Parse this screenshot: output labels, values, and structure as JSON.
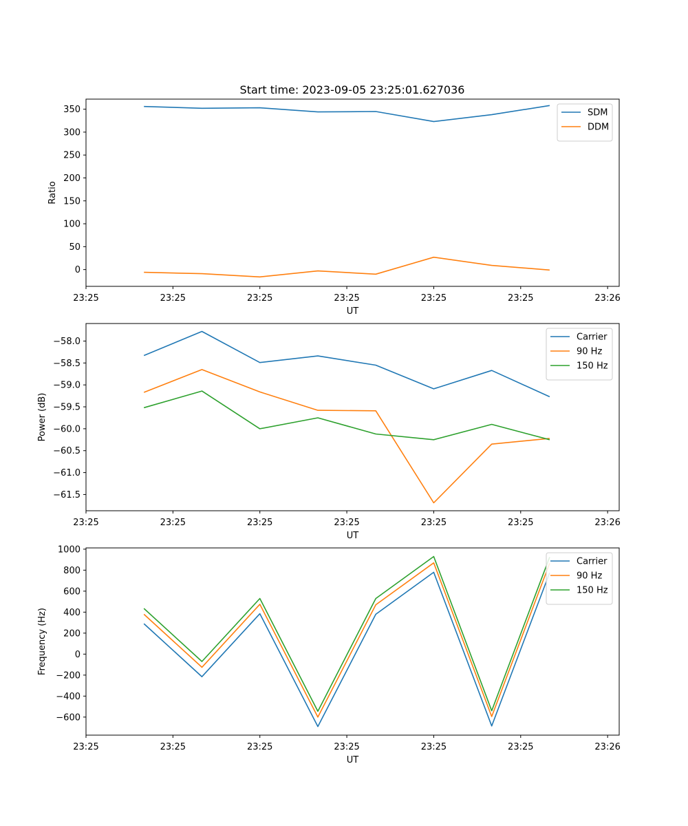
{
  "chart_data": [
    {
      "type": "line",
      "title": "Start time: 2023-09-05 23:25:01.627036",
      "xlabel": "UT",
      "ylabel": "Ratio",
      "x": [
        1,
        2,
        3,
        4,
        5,
        6,
        7,
        8
      ],
      "xlim": [
        0,
        9.2
      ],
      "x_ticks": [
        {
          "x": 0,
          "label": "23:25"
        },
        {
          "x": 1.5,
          "label": "23:25"
        },
        {
          "x": 3,
          "label": "23:25"
        },
        {
          "x": 4.5,
          "label": "23:25"
        },
        {
          "x": 6,
          "label": "23:25"
        },
        {
          "x": 7.5,
          "label": "23:25"
        },
        {
          "x": 9,
          "label": "23:26"
        }
      ],
      "ylim": [
        -36.6,
        372
      ],
      "y_ticks": [
        0,
        50,
        100,
        150,
        200,
        250,
        300,
        350
      ],
      "y_tick_labels": [
        "0",
        "50",
        "100",
        "150",
        "200",
        "250",
        "300",
        "350"
      ],
      "legend_position": "top-right",
      "series": [
        {
          "name": "SDM",
          "color": "#1f77b4",
          "values": [
            356,
            352,
            353,
            344,
            345,
            323,
            338,
            358
          ]
        },
        {
          "name": "DDM",
          "color": "#ff7f0e",
          "values": [
            -6,
            -9,
            -16,
            -3,
            -10,
            27,
            9,
            -1
          ]
        }
      ]
    },
    {
      "type": "line",
      "title": "",
      "xlabel": "UT",
      "ylabel": "Power (dB)",
      "x": [
        1,
        2,
        3,
        4,
        5,
        6,
        7,
        8
      ],
      "xlim": [
        0,
        9.2
      ],
      "x_ticks": [
        {
          "x": 0,
          "label": "23:25"
        },
        {
          "x": 1.5,
          "label": "23:25"
        },
        {
          "x": 3,
          "label": "23:25"
        },
        {
          "x": 4.5,
          "label": "23:25"
        },
        {
          "x": 6,
          "label": "23:25"
        },
        {
          "x": 7.5,
          "label": "23:25"
        },
        {
          "x": 9,
          "label": "23:26"
        }
      ],
      "ylim": [
        -61.87,
        -57.6
      ],
      "y_ticks": [
        -58.0,
        -58.5,
        -59.0,
        -59.5,
        -60.0,
        -60.5,
        -61.0,
        -61.5
      ],
      "y_tick_labels": [
        "−58.0",
        "−58.5",
        "−59.0",
        "−59.5",
        "−60.0",
        "−60.5",
        "−61.0",
        "−61.5"
      ],
      "legend_position": "top-right",
      "series": [
        {
          "name": "Carrier",
          "color": "#1f77b4",
          "values": [
            -58.33,
            -57.78,
            -58.49,
            -58.34,
            -58.55,
            -59.09,
            -58.67,
            -59.27
          ]
        },
        {
          "name": "90 Hz",
          "color": "#ff7f0e",
          "values": [
            -59.17,
            -58.65,
            -59.16,
            -59.58,
            -59.59,
            -61.69,
            -60.35,
            -60.22
          ]
        },
        {
          "name": "150 Hz",
          "color": "#2ca02c",
          "values": [
            -59.52,
            -59.14,
            -60.0,
            -59.75,
            -60.12,
            -60.25,
            -59.9,
            -60.25
          ]
        }
      ]
    },
    {
      "type": "line",
      "title": "",
      "xlabel": "UT",
      "ylabel": "Frequency (Hz)",
      "x": [
        1,
        2,
        3,
        4,
        5,
        6,
        7,
        8
      ],
      "xlim": [
        0,
        9.2
      ],
      "x_ticks": [
        {
          "x": 0,
          "label": "23:25"
        },
        {
          "x": 1.5,
          "label": "23:25"
        },
        {
          "x": 3,
          "label": "23:25"
        },
        {
          "x": 4.5,
          "label": "23:25"
        },
        {
          "x": 6,
          "label": "23:25"
        },
        {
          "x": 7.5,
          "label": "23:25"
        },
        {
          "x": 9,
          "label": "23:26"
        }
      ],
      "ylim": [
        -772,
        1012
      ],
      "y_ticks": [
        1000,
        800,
        600,
        400,
        200,
        0,
        -200,
        -400,
        -600
      ],
      "y_tick_labels": [
        "1000",
        "800",
        "600",
        "400",
        "200",
        "0",
        "−200",
        "−400",
        "−600"
      ],
      "legend_position": "top-right",
      "series": [
        {
          "name": "Carrier",
          "color": "#1f77b4",
          "values": [
            290,
            -215,
            385,
            -690,
            380,
            780,
            -685,
            775
          ]
        },
        {
          "name": "90 Hz",
          "color": "#ff7f0e",
          "values": [
            380,
            -125,
            475,
            -600,
            470,
            870,
            -595,
            865
          ]
        },
        {
          "name": "150 Hz",
          "color": "#2ca02c",
          "values": [
            435,
            -70,
            530,
            -545,
            530,
            930,
            -540,
            925
          ]
        }
      ]
    }
  ]
}
